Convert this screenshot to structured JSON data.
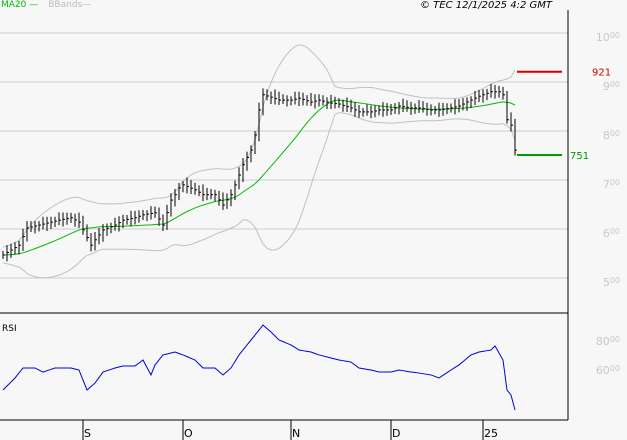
{
  "legend": {
    "ma": "MA20",
    "bb": "BBands"
  },
  "copyright": "© TEC 12/1/2025 4:2 GMT",
  "chart_data": {
    "type": "line",
    "title": "",
    "price_axis": {
      "ticks": [
        {
          "int": "10",
          "dec": "00",
          "v": 1000
        },
        {
          "int": "9",
          "dec": "00",
          "v": 900
        },
        {
          "int": "8",
          "dec": "00",
          "v": 800
        },
        {
          "int": "7",
          "dec": "00",
          "v": 700
        },
        {
          "int": "6",
          "dec": "00",
          "v": 600
        },
        {
          "int": "5",
          "dec": "00",
          "v": 500
        }
      ],
      "ylim": [
        470,
        1080
      ]
    },
    "rsi_axis": {
      "label": "RSI",
      "ticks": [
        {
          "int": "80",
          "dec": "00",
          "v": 80
        },
        {
          "int": "60",
          "dec": "00",
          "v": 60
        }
      ],
      "ylim": [
        18,
        98
      ]
    },
    "x_ticks": [
      {
        "label": "S",
        "day": 21
      },
      {
        "label": "O",
        "day": 46
      },
      {
        "label": "N",
        "day": 73
      },
      {
        "label": "D",
        "day": 98
      },
      {
        "label": "25",
        "day": 121
      }
    ],
    "levels": [
      {
        "label": "921",
        "value": 921,
        "color": "#cc0000"
      },
      {
        "label": "751",
        "value": 751,
        "color": "#009900"
      }
    ],
    "price_keypoints": [
      [
        0,
        547
      ],
      [
        2,
        557
      ],
      [
        4,
        567
      ],
      [
        6,
        602
      ],
      [
        9,
        608
      ],
      [
        12,
        614
      ],
      [
        14,
        618
      ],
      [
        17,
        623
      ],
      [
        19,
        614
      ],
      [
        22,
        567
      ],
      [
        23,
        578
      ],
      [
        24,
        588
      ],
      [
        25,
        598
      ],
      [
        28,
        608
      ],
      [
        30,
        618
      ],
      [
        33,
        623
      ],
      [
        35,
        629
      ],
      [
        38,
        633
      ],
      [
        40,
        608
      ],
      [
        42,
        659
      ],
      [
        43,
        670
      ],
      [
        44,
        684
      ],
      [
        45,
        690
      ],
      [
        48,
        680
      ],
      [
        50,
        670
      ],
      [
        53,
        670
      ],
      [
        55,
        649
      ],
      [
        57,
        670
      ],
      [
        58,
        690
      ],
      [
        59,
        710
      ],
      [
        60,
        731
      ],
      [
        62,
        761
      ],
      [
        63,
        792
      ],
      [
        64,
        843
      ],
      [
        65,
        874
      ],
      [
        67,
        869
      ],
      [
        69,
        863
      ],
      [
        72,
        863
      ],
      [
        74,
        867
      ],
      [
        77,
        859
      ],
      [
        79,
        863
      ],
      [
        82,
        857
      ],
      [
        84,
        855
      ],
      [
        87,
        847
      ],
      [
        89,
        839
      ],
      [
        92,
        839
      ],
      [
        94,
        843
      ],
      [
        97,
        843
      ],
      [
        99,
        851
      ],
      [
        102,
        847
      ],
      [
        104,
        847
      ],
      [
        107,
        843
      ],
      [
        109,
        843
      ],
      [
        112,
        847
      ],
      [
        114,
        851
      ],
      [
        117,
        863
      ],
      [
        119,
        871
      ],
      [
        122,
        880
      ],
      [
        124,
        880
      ],
      [
        125,
        874
      ],
      [
        126,
        823
      ],
      [
        127,
        812
      ],
      [
        128,
        761
      ]
    ],
    "rsi_keypoints": [
      [
        0,
        45.5
      ],
      [
        3,
        53.8
      ],
      [
        5,
        60.7
      ],
      [
        8,
        60.7
      ],
      [
        10,
        57.9
      ],
      [
        13,
        60.7
      ],
      [
        17,
        60.7
      ],
      [
        19,
        59.3
      ],
      [
        21,
        45.5
      ],
      [
        23,
        50.3
      ],
      [
        25,
        57.9
      ],
      [
        28,
        60.7
      ],
      [
        30,
        62.1
      ],
      [
        33,
        62.1
      ],
      [
        35,
        66.2
      ],
      [
        37,
        55.9
      ],
      [
        38,
        62.8
      ],
      [
        40,
        69.7
      ],
      [
        43,
        71.7
      ],
      [
        45,
        69.7
      ],
      [
        48,
        66.2
      ],
      [
        50,
        60.7
      ],
      [
        53,
        60.7
      ],
      [
        55,
        55.9
      ],
      [
        57,
        60.7
      ],
      [
        59,
        69.7
      ],
      [
        62,
        80
      ],
      [
        65,
        90.3
      ],
      [
        67,
        85.5
      ],
      [
        69,
        80
      ],
      [
        72,
        76.6
      ],
      [
        74,
        73.1
      ],
      [
        77,
        71.7
      ],
      [
        79,
        69.7
      ],
      [
        82,
        67.6
      ],
      [
        84,
        66.2
      ],
      [
        87,
        64.8
      ],
      [
        89,
        60.7
      ],
      [
        92,
        59.3
      ],
      [
        94,
        57.9
      ],
      [
        97,
        57.9
      ],
      [
        99,
        59.3
      ],
      [
        102,
        57.9
      ],
      [
        104,
        57.2
      ],
      [
        107,
        55.9
      ],
      [
        109,
        53.8
      ],
      [
        112,
        59.3
      ],
      [
        114,
        62.8
      ],
      [
        117,
        69.7
      ],
      [
        119,
        71.7
      ],
      [
        122,
        73.1
      ],
      [
        123,
        75.9
      ],
      [
        125,
        66.2
      ],
      [
        126,
        45.5
      ],
      [
        127,
        42.1
      ],
      [
        128,
        31.7
      ]
    ]
  }
}
